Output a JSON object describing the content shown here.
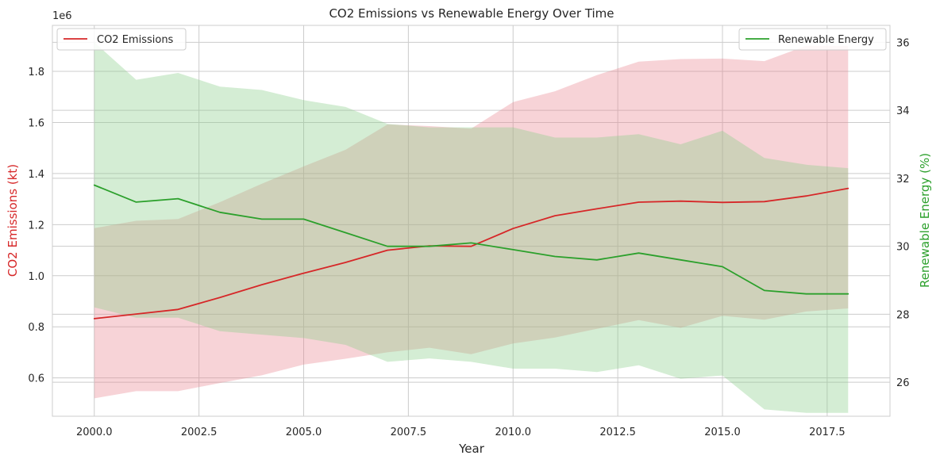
{
  "chart_data": {
    "type": "line",
    "title": "CO2 Emissions vs Renewable Energy Over Time",
    "xlabel": "Year",
    "x": [
      2000,
      2001,
      2002,
      2003,
      2004,
      2005,
      2006,
      2007,
      2008,
      2009,
      2010,
      2011,
      2012,
      2013,
      2014,
      2015,
      2016,
      2017,
      2018
    ],
    "xlim": [
      1999.0,
      2019.0
    ],
    "xticks": [
      2000.0,
      2002.5,
      2005.0,
      2007.5,
      2010.0,
      2012.5,
      2015.0,
      2017.5
    ],
    "xtick_labels": [
      "2000.0",
      "2002.5",
      "2005.0",
      "2007.5",
      "2010.0",
      "2012.5",
      "2015.0",
      "2017.5"
    ],
    "grid": true,
    "left_axis": {
      "label": "CO2 Emissions (kt)",
      "color": "#d62728",
      "offset_label": "1e6",
      "ylim": [
        0.45,
        1.98
      ],
      "ticks": [
        0.6,
        0.8,
        1.0,
        1.2,
        1.4,
        1.6,
        1.8
      ],
      "tick_labels": [
        "0.6",
        "0.8",
        "1.0",
        "1.2",
        "1.4",
        "1.6",
        "1.8"
      ]
    },
    "right_axis": {
      "label": "Renewable Energy (%)",
      "color": "#2ca02c",
      "ylim": [
        25.0,
        36.5
      ],
      "ticks": [
        26,
        28,
        30,
        32,
        34,
        36
      ],
      "tick_labels": [
        "26",
        "28",
        "30",
        "32",
        "34",
        "36"
      ]
    },
    "series": [
      {
        "name": "CO2 Emissions",
        "axis": "left",
        "color": "#d62728",
        "band_color": "#e8868f",
        "values": [
          0.832,
          0.85,
          0.868,
          0.915,
          0.965,
          1.01,
          1.052,
          1.1,
          1.117,
          1.115,
          1.185,
          1.235,
          1.262,
          1.288,
          1.292,
          1.287,
          1.29,
          1.312,
          1.342
        ],
        "band_lower": [
          0.52,
          0.548,
          0.548,
          0.58,
          0.61,
          0.652,
          0.675,
          0.7,
          0.718,
          0.693,
          0.735,
          0.758,
          0.792,
          0.826,
          0.796,
          0.843,
          0.828,
          0.86,
          0.872
        ],
        "band_upper": [
          1.186,
          1.215,
          1.222,
          1.288,
          1.36,
          1.428,
          1.493,
          1.592,
          1.586,
          1.576,
          1.68,
          1.722,
          1.785,
          1.838,
          1.848,
          1.85,
          1.84,
          1.9,
          1.9
        ]
      },
      {
        "name": "Renewable Energy",
        "axis": "right",
        "color": "#2ca02c",
        "band_color": "#88cc88",
        "values": [
          31.8,
          31.3,
          31.4,
          31.0,
          30.8,
          30.8,
          30.4,
          30.0,
          30.0,
          30.1,
          29.9,
          29.7,
          29.6,
          29.8,
          29.6,
          29.4,
          28.7,
          28.6,
          28.6
        ],
        "band_lower": [
          28.2,
          27.9,
          27.9,
          27.5,
          27.4,
          27.3,
          27.1,
          26.6,
          26.7,
          26.6,
          26.4,
          26.4,
          26.3,
          26.5,
          26.1,
          26.2,
          25.2,
          25.1,
          25.1
        ],
        "band_upper": [
          36.0,
          34.9,
          35.1,
          34.7,
          34.6,
          34.3,
          34.1,
          33.6,
          33.5,
          33.5,
          33.5,
          33.2,
          33.2,
          33.3,
          33.0,
          33.4,
          32.6,
          32.4,
          32.3
        ]
      }
    ],
    "legend": [
      {
        "label": "CO2 Emissions",
        "placement": "upper-left"
      },
      {
        "label": "Renewable Energy",
        "placement": "upper-right"
      }
    ]
  }
}
